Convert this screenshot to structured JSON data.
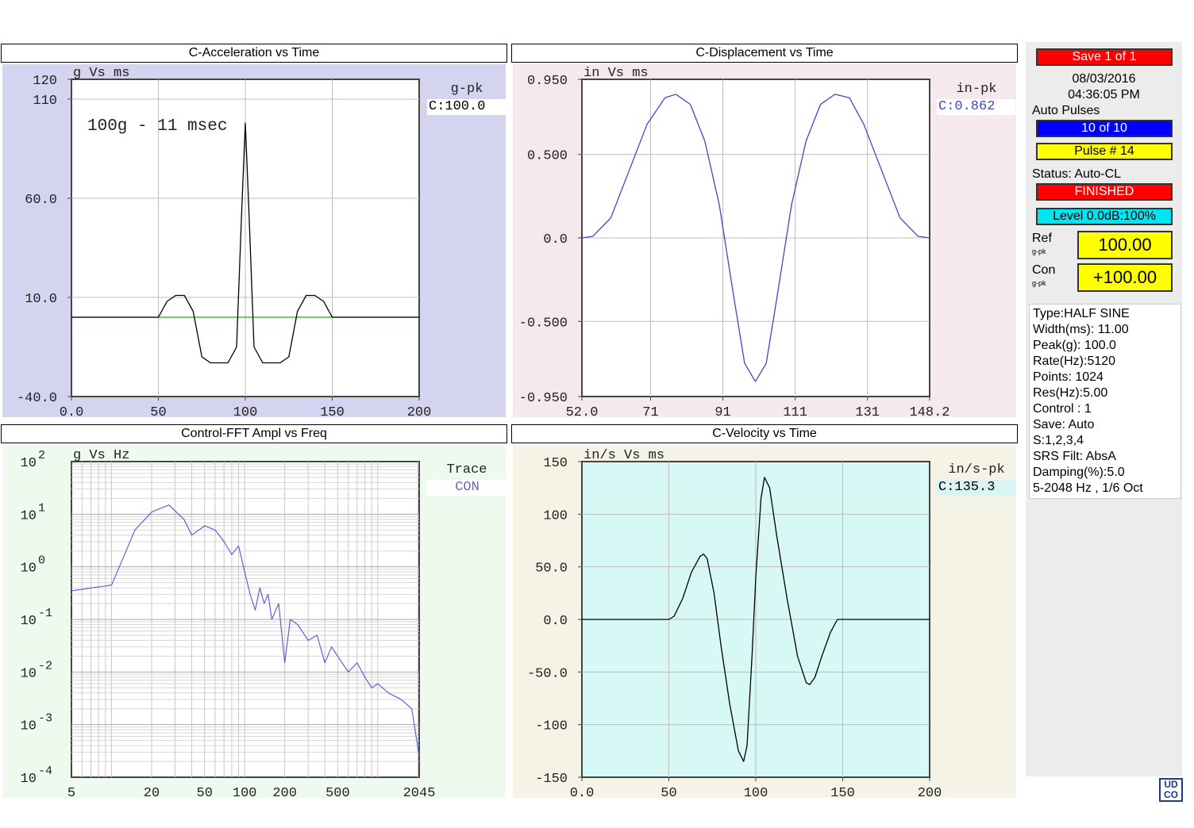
{
  "panels": {
    "accel": {
      "title": "C-Acceleration vs Time",
      "unit": "g Vs ms",
      "side_label": "g-pk",
      "side_value": "C:100.0",
      "annotation": "100g - 11 msec",
      "x_ticks": [
        "0.0",
        "50",
        "100",
        "150",
        "200"
      ],
      "y_ticks": [
        "120",
        "110",
        "60.0",
        "10.0",
        "-40.0"
      ]
    },
    "disp": {
      "title": "C-Displacement vs Time",
      "unit": "in Vs ms",
      "side_label": "in-pk",
      "side_value": "C:0.862",
      "x_ticks": [
        "52.0",
        "71",
        "91",
        "111",
        "131",
        "148.2"
      ],
      "y_ticks": [
        "0.950",
        "0.500",
        "0.0",
        "-0.500",
        "-0.950"
      ]
    },
    "fft": {
      "title": "Control-FFT Ampl vs Freq",
      "unit": "g Vs Hz",
      "side_label": "Trace",
      "side_value": "CON",
      "x_ticks": [
        "5",
        "20",
        "50",
        "100",
        "200",
        "500",
        "2045"
      ],
      "y_ticks": [
        {
          "base": "10",
          "exp": "2"
        },
        {
          "base": "10",
          "exp": "1"
        },
        {
          "base": "10",
          "exp": "0"
        },
        {
          "base": "10",
          "exp": "-1"
        },
        {
          "base": "10",
          "exp": "-2"
        },
        {
          "base": "10",
          "exp": "-3"
        },
        {
          "base": "10",
          "exp": "-4"
        }
      ]
    },
    "vel": {
      "title": "C-Velocity vs Time",
      "unit": "in/s Vs ms",
      "side_label": "in/s-pk",
      "side_value": "C:135.3",
      "x_ticks": [
        "0.0",
        "50",
        "100",
        "150",
        "200"
      ],
      "y_ticks": [
        "150",
        "100",
        "50.0",
        "0.0",
        "-50.0",
        "-100",
        "-150"
      ]
    }
  },
  "chart_data": [
    {
      "type": "line",
      "title": "C-Acceleration vs Time",
      "x_range": [
        0,
        200
      ],
      "y_range": [
        -40,
        120
      ],
      "grid": true,
      "series": [
        {
          "x": [
            0,
            50,
            55,
            60,
            65,
            70,
            75,
            80,
            85,
            90,
            95,
            98,
            100,
            102,
            105,
            110,
            115,
            120,
            125,
            130,
            135,
            140,
            145,
            150,
            200
          ],
          "y": [
            0,
            0,
            8,
            11,
            11,
            3,
            -20,
            -23,
            -23,
            -23,
            -15,
            55,
            98,
            55,
            -15,
            -23,
            -23,
            -23,
            -20,
            3,
            11,
            11,
            8,
            0,
            0
          ],
          "color": "#000000"
        }
      ]
    },
    {
      "type": "line",
      "title": "C-Displacement vs Time",
      "x_range": [
        52,
        148.2
      ],
      "y_range": [
        -0.95,
        0.95
      ],
      "grid": true,
      "series": [
        {
          "x": [
            52,
            55,
            60,
            65,
            70,
            75,
            78,
            82,
            86,
            90,
            94,
            97,
            100,
            103,
            106,
            110,
            114,
            118,
            122,
            126,
            130,
            135,
            140,
            145,
            148.2
          ],
          "y": [
            0,
            0.01,
            0.12,
            0.4,
            0.68,
            0.84,
            0.86,
            0.8,
            0.58,
            0.2,
            -0.35,
            -0.75,
            -0.86,
            -0.75,
            -0.35,
            0.2,
            0.58,
            0.8,
            0.86,
            0.84,
            0.68,
            0.4,
            0.12,
            0.01,
            0
          ]
        }
      ]
    },
    {
      "type": "line",
      "title": "Control-FFT Ampl vs Freq",
      "x_scale": "log",
      "y_scale": "log",
      "x_range": [
        5,
        2045
      ],
      "y_range": [
        0.0001,
        100
      ],
      "grid": true,
      "series": [
        {
          "name": "CON",
          "x": [
            5,
            10,
            15,
            20,
            27,
            35,
            40,
            50,
            60,
            70,
            80,
            90,
            100,
            110,
            120,
            130,
            140,
            150,
            160,
            180,
            200,
            220,
            250,
            300,
            350,
            400,
            450,
            500,
            600,
            700,
            800,
            900,
            1000,
            1200,
            1500,
            1800,
            2045
          ],
          "y": [
            0.35,
            0.45,
            5,
            11,
            15,
            8,
            4,
            6,
            5,
            3,
            1.7,
            2.5,
            0.8,
            0.3,
            0.15,
            0.4,
            0.2,
            0.3,
            0.1,
            0.2,
            0.015,
            0.1,
            0.08,
            0.04,
            0.05,
            0.015,
            0.03,
            0.02,
            0.01,
            0.015,
            0.008,
            0.005,
            0.006,
            0.004,
            0.003,
            0.002,
            0.00025
          ],
          "color": "#5555dd"
        }
      ]
    },
    {
      "type": "line",
      "title": "C-Velocity vs Time",
      "x_range": [
        0,
        200
      ],
      "y_range": [
        -150,
        150
      ],
      "grid": true,
      "series": [
        {
          "x": [
            0,
            50,
            53,
            58,
            63,
            68,
            70,
            72,
            76,
            80,
            85,
            90,
            93,
            95,
            98,
            100,
            103,
            105,
            108,
            112,
            118,
            124,
            129,
            131,
            134,
            138,
            143,
            147,
            150,
            200
          ],
          "y": [
            0,
            0,
            3,
            20,
            45,
            60,
            62,
            58,
            25,
            -25,
            -80,
            -125,
            -135,
            -120,
            -30,
            40,
            115,
            135,
            125,
            80,
            20,
            -35,
            -60,
            -62,
            -55,
            -35,
            -12,
            0,
            0,
            0
          ],
          "color": "#000000"
        }
      ]
    }
  ],
  "status": {
    "save_label": "Save  1 of  1",
    "date": "08/03/2016",
    "time": "04:36:05 PM",
    "auto_pulses_label": "Auto Pulses",
    "pulses": "10 of 10",
    "pulse_num": "Pulse # 14",
    "status_text": "Status: Auto-CL",
    "finished": "FINISHED",
    "level": "Level 0.0dB:100%",
    "ref_label": "Ref",
    "ref_unit": "g-pk",
    "ref_value": "100.00",
    "con_label": "Con",
    "con_unit": "g-pk",
    "con_value": "+100.00"
  },
  "info": [
    "Type:HALF SINE",
    "Width(ms): 11.00",
    "Peak(g): 100.0",
    "Rate(Hz):5120",
    "Points: 1024",
    "Res(Hz):5.00",
    "Control :  1",
    "Save: Auto",
    "S:1,2,3,4",
    "SRS Filt: AbsA",
    "Damping(%):5.0",
    "5-2048 Hz , 1/6 Oct"
  ],
  "logo": "UDCO"
}
